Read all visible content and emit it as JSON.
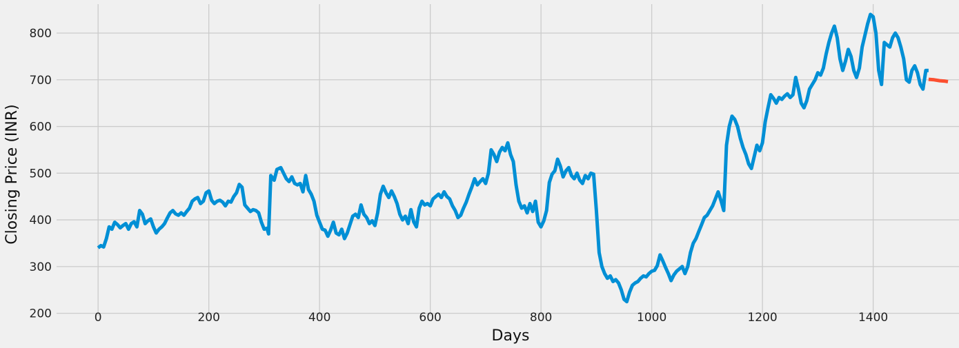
{
  "colors": {
    "background": "#f0f0f0",
    "grid": "#cbcbcb",
    "actual": "#008fd5",
    "predicted": "#fc4f30"
  },
  "chart_data": {
    "type": "line",
    "title": "",
    "xlabel": "Days",
    "ylabel": "Closing Price (INR)",
    "xlim": [
      -75,
      1555
    ],
    "ylim": [
      195,
      862
    ],
    "xticks": [
      0,
      200,
      400,
      600,
      800,
      1000,
      1200,
      1400
    ],
    "yticks": [
      200,
      300,
      400,
      500,
      600,
      700,
      800
    ],
    "grid": true,
    "legend": "none",
    "series": [
      {
        "color": "#008fd5",
        "points": [
          [
            0,
            340
          ],
          [
            5,
            345
          ],
          [
            10,
            342
          ],
          [
            15,
            360
          ],
          [
            20,
            385
          ],
          [
            25,
            380
          ],
          [
            30,
            395
          ],
          [
            35,
            390
          ],
          [
            40,
            383
          ],
          [
            45,
            388
          ],
          [
            50,
            392
          ],
          [
            55,
            380
          ],
          [
            60,
            392
          ],
          [
            65,
            396
          ],
          [
            70,
            385
          ],
          [
            75,
            420
          ],
          [
            80,
            412
          ],
          [
            85,
            392
          ],
          [
            90,
            398
          ],
          [
            95,
            402
          ],
          [
            100,
            385
          ],
          [
            105,
            372
          ],
          [
            110,
            380
          ],
          [
            115,
            385
          ],
          [
            120,
            392
          ],
          [
            125,
            404
          ],
          [
            130,
            415
          ],
          [
            135,
            420
          ],
          [
            140,
            413
          ],
          [
            145,
            410
          ],
          [
            150,
            415
          ],
          [
            155,
            410
          ],
          [
            160,
            418
          ],
          [
            165,
            425
          ],
          [
            170,
            440
          ],
          [
            175,
            445
          ],
          [
            180,
            448
          ],
          [
            185,
            435
          ],
          [
            190,
            440
          ],
          [
            195,
            458
          ],
          [
            200,
            462
          ],
          [
            205,
            442
          ],
          [
            210,
            435
          ],
          [
            215,
            440
          ],
          [
            220,
            442
          ],
          [
            225,
            438
          ],
          [
            230,
            430
          ],
          [
            235,
            440
          ],
          [
            240,
            438
          ],
          [
            245,
            450
          ],
          [
            250,
            458
          ],
          [
            255,
            476
          ],
          [
            260,
            470
          ],
          [
            265,
            432
          ],
          [
            270,
            425
          ],
          [
            275,
            418
          ],
          [
            280,
            422
          ],
          [
            285,
            420
          ],
          [
            290,
            415
          ],
          [
            295,
            395
          ],
          [
            300,
            380
          ],
          [
            305,
            382
          ],
          [
            308,
            370
          ],
          [
            312,
            495
          ],
          [
            318,
            485
          ],
          [
            323,
            508
          ],
          [
            330,
            512
          ],
          [
            335,
            500
          ],
          [
            340,
            488
          ],
          [
            345,
            482
          ],
          [
            350,
            492
          ],
          [
            355,
            478
          ],
          [
            360,
            475
          ],
          [
            365,
            478
          ],
          [
            370,
            460
          ],
          [
            375,
            495
          ],
          [
            380,
            465
          ],
          [
            385,
            455
          ],
          [
            390,
            440
          ],
          [
            395,
            410
          ],
          [
            400,
            395
          ],
          [
            405,
            380
          ],
          [
            410,
            378
          ],
          [
            415,
            365
          ],
          [
            420,
            378
          ],
          [
            425,
            395
          ],
          [
            430,
            372
          ],
          [
            435,
            368
          ],
          [
            440,
            380
          ],
          [
            445,
            360
          ],
          [
            450,
            372
          ],
          [
            455,
            390
          ],
          [
            460,
            408
          ],
          [
            465,
            412
          ],
          [
            470,
            405
          ],
          [
            475,
            432
          ],
          [
            480,
            412
          ],
          [
            485,
            405
          ],
          [
            490,
            392
          ],
          [
            495,
            398
          ],
          [
            500,
            388
          ],
          [
            505,
            415
          ],
          [
            510,
            455
          ],
          [
            515,
            472
          ],
          [
            520,
            458
          ],
          [
            525,
            448
          ],
          [
            530,
            462
          ],
          [
            535,
            450
          ],
          [
            540,
            435
          ],
          [
            545,
            412
          ],
          [
            550,
            400
          ],
          [
            555,
            408
          ],
          [
            560,
            392
          ],
          [
            565,
            422
          ],
          [
            570,
            396
          ],
          [
            575,
            385
          ],
          [
            580,
            425
          ],
          [
            585,
            440
          ],
          [
            590,
            432
          ],
          [
            595,
            435
          ],
          [
            600,
            430
          ],
          [
            605,
            445
          ],
          [
            610,
            450
          ],
          [
            615,
            455
          ],
          [
            620,
            448
          ],
          [
            625,
            460
          ],
          [
            630,
            450
          ],
          [
            635,
            445
          ],
          [
            640,
            430
          ],
          [
            645,
            420
          ],
          [
            650,
            405
          ],
          [
            655,
            410
          ],
          [
            660,
            425
          ],
          [
            665,
            438
          ],
          [
            670,
            455
          ],
          [
            675,
            470
          ],
          [
            680,
            488
          ],
          [
            685,
            475
          ],
          [
            690,
            482
          ],
          [
            695,
            488
          ],
          [
            700,
            478
          ],
          [
            705,
            500
          ],
          [
            710,
            550
          ],
          [
            715,
            540
          ],
          [
            720,
            525
          ],
          [
            725,
            545
          ],
          [
            730,
            555
          ],
          [
            735,
            548
          ],
          [
            740,
            565
          ],
          [
            745,
            540
          ],
          [
            750,
            525
          ],
          [
            755,
            475
          ],
          [
            760,
            440
          ],
          [
            765,
            425
          ],
          [
            770,
            430
          ],
          [
            775,
            415
          ],
          [
            780,
            435
          ],
          [
            785,
            418
          ],
          [
            790,
            440
          ],
          [
            795,
            395
          ],
          [
            800,
            385
          ],
          [
            805,
            398
          ],
          [
            810,
            420
          ],
          [
            815,
            480
          ],
          [
            820,
            498
          ],
          [
            825,
            505
          ],
          [
            830,
            530
          ],
          [
            835,
            515
          ],
          [
            840,
            492
          ],
          [
            845,
            505
          ],
          [
            850,
            512
          ],
          [
            855,
            495
          ],
          [
            860,
            488
          ],
          [
            865,
            500
          ],
          [
            870,
            485
          ],
          [
            875,
            478
          ],
          [
            880,
            495
          ],
          [
            885,
            488
          ],
          [
            890,
            500
          ],
          [
            895,
            498
          ],
          [
            900,
            420
          ],
          [
            905,
            330
          ],
          [
            910,
            300
          ],
          [
            915,
            285
          ],
          [
            920,
            275
          ],
          [
            925,
            280
          ],
          [
            930,
            268
          ],
          [
            935,
            272
          ],
          [
            940,
            265
          ],
          [
            945,
            250
          ],
          [
            950,
            230
          ],
          [
            955,
            225
          ],
          [
            960,
            245
          ],
          [
            965,
            260
          ],
          [
            970,
            265
          ],
          [
            975,
            268
          ],
          [
            980,
            275
          ],
          [
            985,
            280
          ],
          [
            990,
            278
          ],
          [
            995,
            285
          ],
          [
            1000,
            290
          ],
          [
            1005,
            292
          ],
          [
            1010,
            302
          ],
          [
            1015,
            325
          ],
          [
            1020,
            312
          ],
          [
            1025,
            298
          ],
          [
            1030,
            285
          ],
          [
            1035,
            270
          ],
          [
            1040,
            282
          ],
          [
            1045,
            290
          ],
          [
            1050,
            295
          ],
          [
            1055,
            300
          ],
          [
            1060,
            285
          ],
          [
            1065,
            300
          ],
          [
            1070,
            330
          ],
          [
            1075,
            350
          ],
          [
            1080,
            360
          ],
          [
            1085,
            375
          ],
          [
            1090,
            390
          ],
          [
            1095,
            405
          ],
          [
            1100,
            410
          ],
          [
            1105,
            420
          ],
          [
            1110,
            430
          ],
          [
            1115,
            445
          ],
          [
            1120,
            460
          ],
          [
            1125,
            442
          ],
          [
            1130,
            420
          ],
          [
            1135,
            560
          ],
          [
            1140,
            600
          ],
          [
            1145,
            622
          ],
          [
            1150,
            615
          ],
          [
            1155,
            600
          ],
          [
            1160,
            575
          ],
          [
            1165,
            555
          ],
          [
            1170,
            540
          ],
          [
            1175,
            520
          ],
          [
            1180,
            510
          ],
          [
            1185,
            535
          ],
          [
            1190,
            560
          ],
          [
            1195,
            548
          ],
          [
            1200,
            565
          ],
          [
            1205,
            610
          ],
          [
            1210,
            640
          ],
          [
            1215,
            668
          ],
          [
            1220,
            660
          ],
          [
            1225,
            650
          ],
          [
            1230,
            662
          ],
          [
            1235,
            658
          ],
          [
            1240,
            665
          ],
          [
            1245,
            670
          ],
          [
            1250,
            662
          ],
          [
            1255,
            668
          ],
          [
            1260,
            705
          ],
          [
            1265,
            680
          ],
          [
            1270,
            650
          ],
          [
            1275,
            640
          ],
          [
            1280,
            655
          ],
          [
            1285,
            680
          ],
          [
            1290,
            690
          ],
          [
            1295,
            700
          ],
          [
            1300,
            715
          ],
          [
            1305,
            710
          ],
          [
            1310,
            725
          ],
          [
            1315,
            755
          ],
          [
            1320,
            780
          ],
          [
            1325,
            800
          ],
          [
            1330,
            815
          ],
          [
            1335,
            790
          ],
          [
            1340,
            745
          ],
          [
            1345,
            720
          ],
          [
            1350,
            740
          ],
          [
            1355,
            765
          ],
          [
            1360,
            750
          ],
          [
            1365,
            720
          ],
          [
            1370,
            705
          ],
          [
            1375,
            725
          ],
          [
            1380,
            770
          ],
          [
            1385,
            795
          ],
          [
            1390,
            820
          ],
          [
            1395,
            840
          ],
          [
            1400,
            835
          ],
          [
            1405,
            800
          ],
          [
            1410,
            720
          ],
          [
            1415,
            690
          ],
          [
            1420,
            780
          ],
          [
            1425,
            775
          ],
          [
            1430,
            770
          ],
          [
            1435,
            790
          ],
          [
            1440,
            800
          ],
          [
            1445,
            790
          ],
          [
            1450,
            770
          ],
          [
            1455,
            745
          ],
          [
            1460,
            700
          ],
          [
            1465,
            695
          ],
          [
            1470,
            720
          ],
          [
            1475,
            730
          ],
          [
            1480,
            715
          ],
          [
            1485,
            690
          ],
          [
            1490,
            680
          ],
          [
            1495,
            720
          ],
          [
            1500,
            720
          ]
        ]
      },
      {
        "color": "#fc4f30",
        "points": [
          [
            1500,
            701
          ],
          [
            1510,
            700
          ],
          [
            1520,
            698
          ],
          [
            1530,
            697
          ],
          [
            1535,
            696
          ]
        ]
      }
    ]
  }
}
